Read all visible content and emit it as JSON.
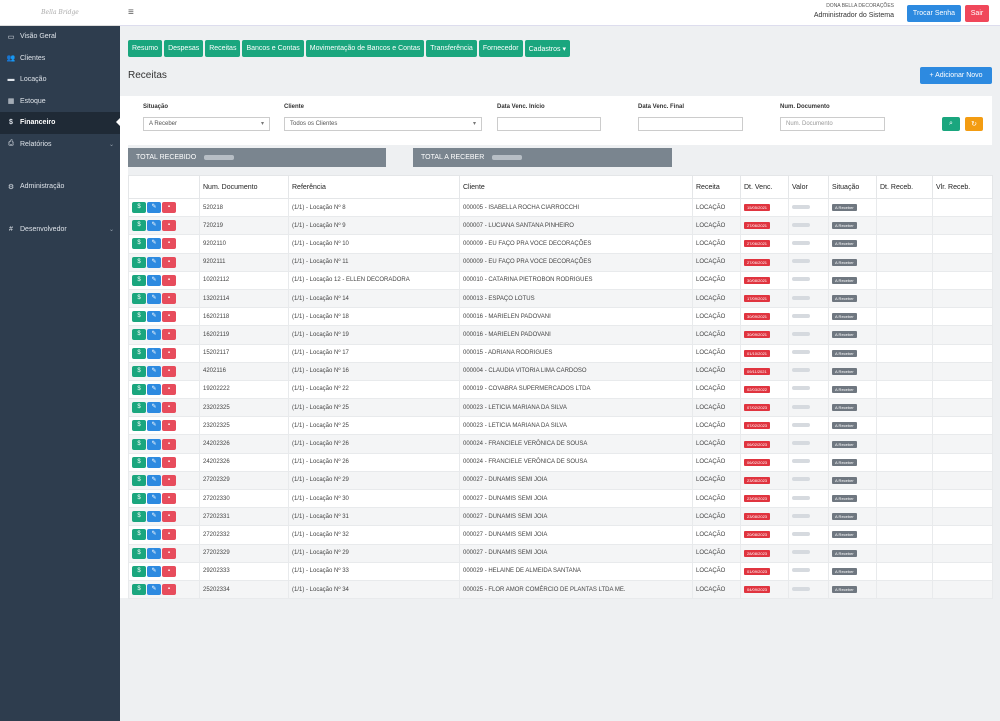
{
  "logo": "Bella Bridge",
  "sidebar": {
    "items": [
      {
        "label": "Visão Geral",
        "icon": "monitor-icon",
        "glyph": "▭"
      },
      {
        "label": "Clientes",
        "icon": "users-icon",
        "glyph": "👥"
      },
      {
        "label": "Locação",
        "icon": "truck-icon",
        "glyph": "▬"
      },
      {
        "label": "Estoque",
        "icon": "grid-icon",
        "glyph": "▦"
      },
      {
        "label": "Financeiro",
        "icon": "dollar-icon",
        "glyph": "$"
      },
      {
        "label": "Relatórios",
        "icon": "print-icon",
        "glyph": "⎙"
      },
      {
        "label": "Administração",
        "icon": "gear-icon",
        "glyph": "⚙"
      },
      {
        "label": "Desenvolvedor",
        "icon": "hash-icon",
        "glyph": "#"
      }
    ]
  },
  "header": {
    "company": "DONA BELLA DECORAÇÕES",
    "role": "Administrador do Sistema",
    "change_password": "Trocar Senha",
    "logout": "Sair"
  },
  "nav": [
    "Resumo",
    "Despesas",
    "Receitas",
    "Bancos e Contas",
    "Movimentação de Bancos e Contas",
    "Transferência",
    "Fornecedor",
    "Cadastros ▾"
  ],
  "page": {
    "title": "Receitas",
    "add_button": "+ Adicionar Novo"
  },
  "filters": {
    "situacao": {
      "label": "Situação",
      "value": "A Receber"
    },
    "cliente": {
      "label": "Cliente",
      "value": "Todos os Clientes"
    },
    "venc_inicio": {
      "label": "Data Venc. Início",
      "value": ""
    },
    "venc_final": {
      "label": "Data Venc. Final",
      "value": ""
    },
    "num_doc": {
      "label": "Num. Documento",
      "placeholder": "Num. Documento"
    }
  },
  "totals": {
    "received": "TOTAL RECEBIDO",
    "to_receive": "TOTAL A RECEBER"
  },
  "table": {
    "headers": [
      "",
      "Num. Documento",
      "Referência",
      "Cliente",
      "Receita",
      "Dt. Venc.",
      "Valor",
      "Situação",
      "Dt. Receb.",
      "Vlr. Receb."
    ],
    "status_label": "A Receber",
    "rows": [
      {
        "doc": "520218",
        "ref": "(1/1) - Locação Nº 8",
        "client": "000005 - ISABELLA ROCHA CIARROCCHI",
        "type": "LOCAÇÃO",
        "due": "15/05/2021"
      },
      {
        "doc": "720219",
        "ref": "(1/1) - Locação Nº 9",
        "client": "000007 - LUCIANA SANTANA PINHEIRO",
        "type": "LOCAÇÃO",
        "due": "27/06/2021"
      },
      {
        "doc": "9202110",
        "ref": "(1/1) - Locação Nº 10",
        "client": "000009 - EU FAÇO PRA VOCE DECORAÇÕES",
        "type": "LOCAÇÃO",
        "due": "27/06/2021"
      },
      {
        "doc": "9202111",
        "ref": "(1/1) - Locação Nº 11",
        "client": "000009 - EU FAÇO PRA VOCE DECORAÇÕES",
        "type": "LOCAÇÃO",
        "due": "27/06/2021"
      },
      {
        "doc": "10202112",
        "ref": "(1/1) - Locação 12 - ELLEN DECORADORA",
        "client": "000010 - CATARINA PIETROBON RODRIGUES",
        "type": "LOCAÇÃO",
        "due": "30/08/2021"
      },
      {
        "doc": "13202114",
        "ref": "(1/1) - Locação Nº 14",
        "client": "000013 - ESPAÇO LOTUS",
        "type": "LOCAÇÃO",
        "due": "17/09/2021"
      },
      {
        "doc": "16202118",
        "ref": "(1/1) - Locação Nº 18",
        "client": "000016 - MARIELEN PADOVANI",
        "type": "LOCAÇÃO",
        "due": "30/09/2021"
      },
      {
        "doc": "16202119",
        "ref": "(1/1) - Locação Nº 19",
        "client": "000016 - MARIELEN PADOVANI",
        "type": "LOCAÇÃO",
        "due": "30/09/2021"
      },
      {
        "doc": "15202117",
        "ref": "(1/1) - Locação Nº 17",
        "client": "000015 - ADRIANA RODRIGUES",
        "type": "LOCAÇÃO",
        "due": "01/10/2021"
      },
      {
        "doc": "4202116",
        "ref": "(1/1) - Locação Nº 16",
        "client": "000004 - CLAUDIA VITORIA LIMA CARDOSO",
        "type": "LOCAÇÃO",
        "due": "09/11/2021"
      },
      {
        "doc": "19202222",
        "ref": "(1/1) - Locação Nº 22",
        "client": "000019 - COVABRA SUPERMERCADOS LTDA",
        "type": "LOCAÇÃO",
        "due": "02/03/2022"
      },
      {
        "doc": "23202325",
        "ref": "(1/1) - Locação Nº 25",
        "client": "000023 - LETICIA MARIANA DA SILVA",
        "type": "LOCAÇÃO",
        "due": "07/02/2023"
      },
      {
        "doc": "23202325",
        "ref": "(1/1) - Locação Nº 25",
        "client": "000023 - LETICIA MARIANA DA SILVA",
        "type": "LOCAÇÃO",
        "due": "07/02/2023"
      },
      {
        "doc": "24202326",
        "ref": "(1/1) - Locação Nº 26",
        "client": "000024 - FRANCIELE VERÔNICA DE SOUSA",
        "type": "LOCAÇÃO",
        "due": "06/02/2023"
      },
      {
        "doc": "24202326",
        "ref": "(1/1) - Locação Nº 26",
        "client": "000024 - FRANCIELE VERÔNICA DE SOUSA",
        "type": "LOCAÇÃO",
        "due": "06/02/2023"
      },
      {
        "doc": "27202329",
        "ref": "(1/1) - Locação Nº 29",
        "client": "000027 - DUNAMIS SEMI JOIA",
        "type": "LOCAÇÃO",
        "due": "23/08/2023"
      },
      {
        "doc": "27202330",
        "ref": "(1/1) - Locação Nº 30",
        "client": "000027 - DUNAMIS SEMI JOIA",
        "type": "LOCAÇÃO",
        "due": "23/08/2023"
      },
      {
        "doc": "27202331",
        "ref": "(1/1) - Locação Nº 31",
        "client": "000027 - DUNAMIS SEMI JOIA",
        "type": "LOCAÇÃO",
        "due": "23/08/2023"
      },
      {
        "doc": "27202332",
        "ref": "(1/1) - Locação Nº 32",
        "client": "000027 - DUNAMIS SEMI JOIA",
        "type": "LOCAÇÃO",
        "due": "20/08/2023"
      },
      {
        "doc": "27202329",
        "ref": "(1/1) - Locação Nº 29",
        "client": "000027 - DUNAMIS SEMI JOIA",
        "type": "LOCAÇÃO",
        "due": "28/08/2023"
      },
      {
        "doc": "29202333",
        "ref": "(1/1) - Locação Nº 33",
        "client": "000029 - HELAINE DE ALMEIDA SANTANA",
        "type": "LOCAÇÃO",
        "due": "01/09/2023"
      },
      {
        "doc": "25202334",
        "ref": "(1/1) - Locação Nº 34",
        "client": "000025 - FLOR AMOR COMÉRCIO DE PLANTAS LTDA ME.",
        "type": "LOCAÇÃO",
        "due": "04/09/2023"
      }
    ]
  },
  "colors": {
    "sidebar": "#2e3d4e",
    "green": "#1aa67e",
    "blue": "#2d8ae0",
    "red": "#e74c5c",
    "orange": "#f39c12"
  }
}
